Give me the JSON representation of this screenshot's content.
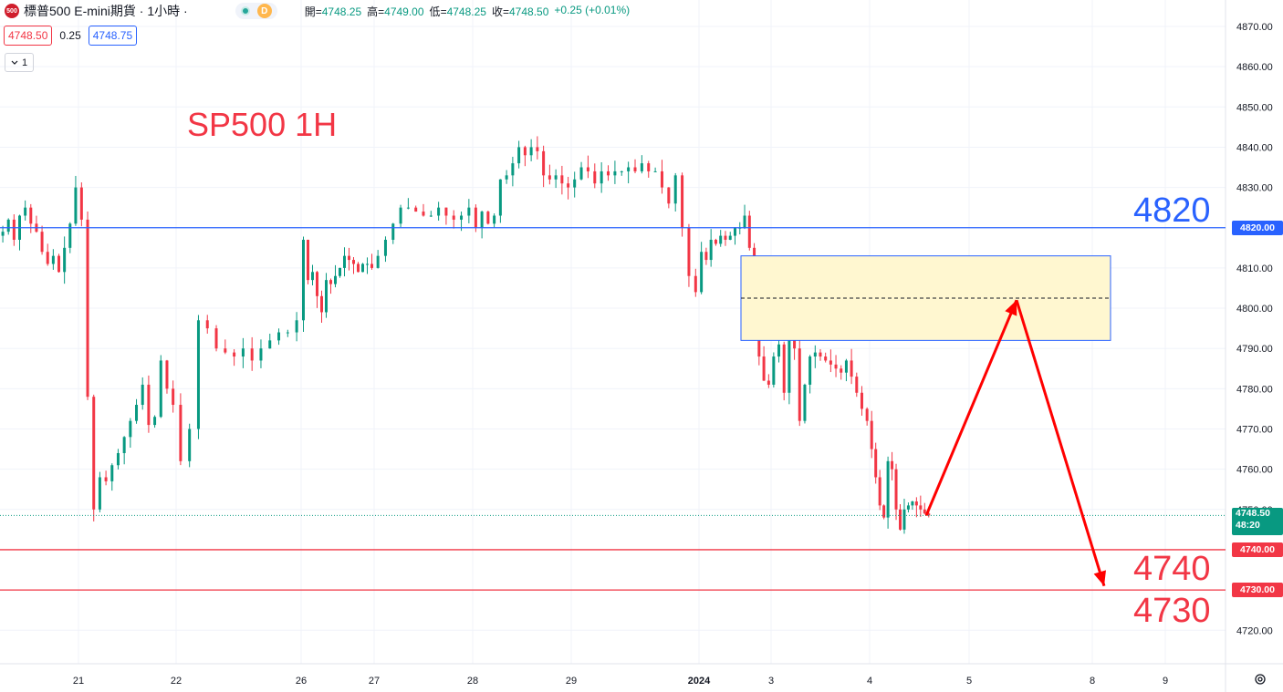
{
  "header": {
    "symbol_logo": "500",
    "title": "標普500 E-mini期貨 · 1小時 ·",
    "badge_d": "D",
    "ohlc": [
      {
        "k": "開",
        "v": "4748.25"
      },
      {
        "k": "高",
        "v": "4749.00"
      },
      {
        "k": "低",
        "v": "4748.25"
      },
      {
        "k": "收",
        "v": "4748.50"
      }
    ],
    "change": "+0.25 (+0.01%)"
  },
  "quote": {
    "bid": "4748.50",
    "spread": "0.25",
    "ask": "4748.75"
  },
  "collapse_label": "1",
  "annotations": {
    "title": "SP500 1H",
    "level_4820": "4820",
    "level_4740": "4740",
    "level_4730": "4730"
  },
  "price_tags": {
    "p4820": "4820.00",
    "last_price": "4748.50",
    "countdown": "48:20",
    "p4740": "4740.00",
    "p4730": "4730.00"
  },
  "colors": {
    "up": "#089981",
    "down": "#f23645",
    "blue": "#2962ff",
    "red_line": "#f23645",
    "zone_fill": "#fff7d0"
  },
  "icons": [
    "settings-icon",
    "chevron-down-icon"
  ],
  "chart_data": {
    "type": "candlestick",
    "title": "SP500 1H",
    "ylim": [
      4715,
      4875
    ],
    "y_ticks": [
      "4870.00",
      "4860.00",
      "4850.00",
      "4840.00",
      "4830.00",
      "4820.00",
      "4810.00",
      "4800.00",
      "4790.00",
      "4780.00",
      "4770.00",
      "4760.00",
      "4750.00",
      "4740.00",
      "4730.00",
      "4720.00"
    ],
    "x_ticks": [
      "21",
      "22",
      "26",
      "27",
      "28",
      "29",
      "2024",
      "3",
      "4",
      "5",
      "8",
      "9"
    ],
    "horizontal_levels": [
      {
        "value": 4820,
        "color": "#2962ff"
      },
      {
        "value": 4740,
        "color": "#f23645"
      },
      {
        "value": 4730,
        "color": "#f23645"
      }
    ],
    "last_price": 4748.5,
    "target_zone": {
      "from_x": "3",
      "to_x": "8",
      "low": 4792,
      "high": 4813,
      "mid": 4802.5
    },
    "projection": [
      {
        "x": "4",
        "y": 4748.5
      },
      {
        "x": "5",
        "y": 4802
      },
      {
        "x": "8",
        "y": 4731
      }
    ],
    "path": [
      [
        "20",
        4819
      ],
      [
        "20",
        4822
      ],
      [
        "20",
        4817
      ],
      [
        "20",
        4823
      ],
      [
        "20",
        4825
      ],
      [
        "20",
        4821
      ],
      [
        "20",
        4819
      ],
      [
        "20",
        4814
      ],
      [
        "20",
        4811
      ],
      [
        "20",
        4813
      ],
      [
        "20",
        4809
      ],
      [
        "20",
        4815
      ],
      [
        "20",
        4821
      ],
      [
        "20",
        4830
      ],
      [
        "21",
        4822
      ],
      [
        "21",
        4778
      ],
      [
        "21",
        4750
      ],
      [
        "21",
        4758
      ],
      [
        "21",
        4757
      ],
      [
        "21",
        4761
      ],
      [
        "21",
        4764
      ],
      [
        "21",
        4768
      ],
      [
        "21",
        4772
      ],
      [
        "21",
        4776
      ],
      [
        "21",
        4781
      ],
      [
        "21",
        4771
      ],
      [
        "21",
        4773
      ],
      [
        "21",
        4787
      ],
      [
        "21",
        4780
      ],
      [
        "21",
        4776
      ],
      [
        "22",
        4762
      ],
      [
        "22",
        4770
      ],
      [
        "22",
        4797
      ],
      [
        "22",
        4795
      ],
      [
        "22",
        4790
      ],
      [
        "22",
        4789
      ],
      [
        "22",
        4788
      ],
      [
        "22",
        4790
      ],
      [
        "22",
        4787
      ],
      [
        "22",
        4790
      ],
      [
        "22",
        4792
      ],
      [
        "22",
        4794
      ],
      [
        "22",
        4794
      ],
      [
        "22",
        4797
      ],
      [
        "26",
        4817
      ],
      [
        "26",
        4807
      ],
      [
        "26",
        4809
      ],
      [
        "26",
        4803
      ],
      [
        "26",
        4799
      ],
      [
        "26",
        4807
      ],
      [
        "26",
        4806
      ],
      [
        "26",
        4808
      ],
      [
        "26",
        4810
      ],
      [
        "26",
        4813
      ],
      [
        "26",
        4812
      ],
      [
        "26",
        4811
      ],
      [
        "26",
        4809
      ],
      [
        "26",
        4811
      ],
      [
        "26",
        4811
      ],
      [
        "26",
        4810
      ],
      [
        "27",
        4813
      ],
      [
        "27",
        4817
      ],
      [
        "27",
        4821
      ],
      [
        "27",
        4825
      ],
      [
        "27",
        4825
      ],
      [
        "27",
        4824
      ],
      [
        "27",
        4823
      ],
      [
        "27",
        4823
      ],
      [
        "27",
        4825
      ],
      [
        "27",
        4823
      ],
      [
        "27",
        4822
      ],
      [
        "27",
        4823
      ],
      [
        "27",
        4825
      ],
      [
        "28",
        4820
      ],
      [
        "28",
        4824
      ],
      [
        "28",
        4821
      ],
      [
        "28",
        4823
      ],
      [
        "28",
        4832
      ],
      [
        "28",
        4833
      ],
      [
        "28",
        4836
      ],
      [
        "28",
        4840
      ],
      [
        "28",
        4838
      ],
      [
        "28",
        4840
      ],
      [
        "28",
        4839
      ],
      [
        "28",
        4833
      ],
      [
        "28",
        4832
      ],
      [
        "28",
        4833
      ],
      [
        "28",
        4831
      ],
      [
        "28",
        4830
      ],
      [
        "29",
        4832
      ],
      [
        "29",
        4835
      ],
      [
        "29",
        4834
      ],
      [
        "29",
        4831
      ],
      [
        "29",
        4834
      ],
      [
        "29",
        4833
      ],
      [
        "29",
        4834
      ],
      [
        "29",
        4834
      ],
      [
        "29",
        4835
      ],
      [
        "29",
        4834
      ],
      [
        "29",
        4836
      ],
      [
        "29",
        4834
      ],
      [
        "29",
        4834
      ],
      [
        "29",
        4830
      ],
      [
        "29",
        4826
      ],
      [
        "29",
        4833
      ],
      [
        "29",
        4820
      ],
      [
        "29",
        4808
      ],
      [
        "29",
        4804
      ],
      [
        "2024",
        4814
      ],
      [
        "2024",
        4812
      ],
      [
        "2024",
        4817
      ],
      [
        "2024",
        4816
      ],
      [
        "2024",
        4818
      ],
      [
        "2024",
        4817
      ],
      [
        "2024",
        4818
      ],
      [
        "2024",
        4820
      ],
      [
        "2024",
        4820
      ],
      [
        "2024",
        4823
      ],
      [
        "2024",
        4815
      ],
      [
        "2024",
        4811
      ],
      [
        "2024",
        4788
      ],
      [
        "2024",
        4782
      ],
      [
        "2024",
        4781
      ],
      [
        "3",
        4788
      ],
      [
        "3",
        4791
      ],
      [
        "3",
        4779
      ],
      [
        "3",
        4792
      ],
      [
        "3",
        4790
      ],
      [
        "3",
        4772
      ],
      [
        "3",
        4781
      ],
      [
        "3",
        4788
      ],
      [
        "3",
        4789
      ],
      [
        "3",
        4788
      ],
      [
        "3",
        4787
      ],
      [
        "3",
        4786
      ],
      [
        "3",
        4785
      ],
      [
        "3",
        4784
      ],
      [
        "3",
        4787
      ],
      [
        "3",
        4783
      ],
      [
        "3",
        4779
      ],
      [
        "3",
        4775
      ],
      [
        "3",
        4772
      ],
      [
        "4",
        4765
      ],
      [
        "4",
        4758
      ],
      [
        "4",
        4751
      ],
      [
        "4",
        4748
      ],
      [
        "4",
        4762
      ],
      [
        "4",
        4760
      ],
      [
        "4",
        4750
      ],
      [
        "4",
        4745
      ],
      [
        "4",
        4750
      ],
      [
        "4",
        4751
      ],
      [
        "4",
        4752
      ],
      [
        "4",
        4751
      ],
      [
        "4",
        4750
      ],
      [
        "4",
        4749
      ],
      [
        "4",
        4748.5
      ]
    ]
  }
}
